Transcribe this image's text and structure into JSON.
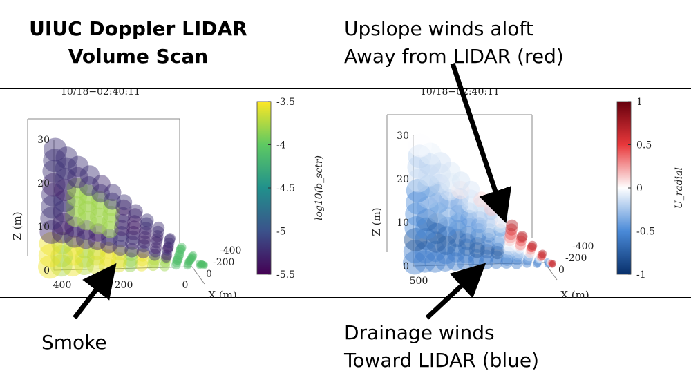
{
  "figure": {
    "title_line1": "UIUC Doppler LIDAR",
    "title_line2": "Volume Scan",
    "upslope_line1": "Upslope winds aloft",
    "upslope_line2": "Away from LIDAR (red)",
    "drainage_line1": "Drainage winds",
    "drainage_line2": "Toward LIDAR (blue)",
    "smoke_label": "Smoke"
  },
  "chart_data": [
    {
      "type": "scatter",
      "timestamp": "10/18−02:40:11",
      "zlabel": "Z (m)",
      "xlabel": "X (m)",
      "z_ticks": [
        "0",
        "10",
        "20",
        "30"
      ],
      "x_ticks": [
        "400",
        "200",
        "0"
      ],
      "y_ticks": [
        "-400",
        "-200",
        "0"
      ],
      "colorbar": {
        "label": "log10(b_sctr)",
        "ticks": [
          "-3.5",
          "-4",
          "-4.5",
          "-5",
          "-5.5"
        ],
        "range": [
          -5.5,
          -3.5
        ],
        "colormap": "viridis"
      },
      "features": [
        {
          "name": "smoke plume",
          "value_range": [
            -4.0,
            -3.5
          ]
        }
      ]
    },
    {
      "type": "scatter",
      "timestamp": "10/18−02:40:11",
      "zlabel": "Z (m)",
      "xlabel": "X (m)",
      "z_ticks": [
        "0",
        "10",
        "20",
        "30"
      ],
      "x_ticks": [
        "500"
      ],
      "y_ticks": [
        "-400",
        "-200",
        "0"
      ],
      "colorbar": {
        "label": "U_radial",
        "ticks": [
          "1",
          "0.5",
          "0",
          "-0.5",
          "-1"
        ],
        "range": [
          -1,
          1
        ],
        "colormap": "blue-white-red"
      }
    }
  ]
}
